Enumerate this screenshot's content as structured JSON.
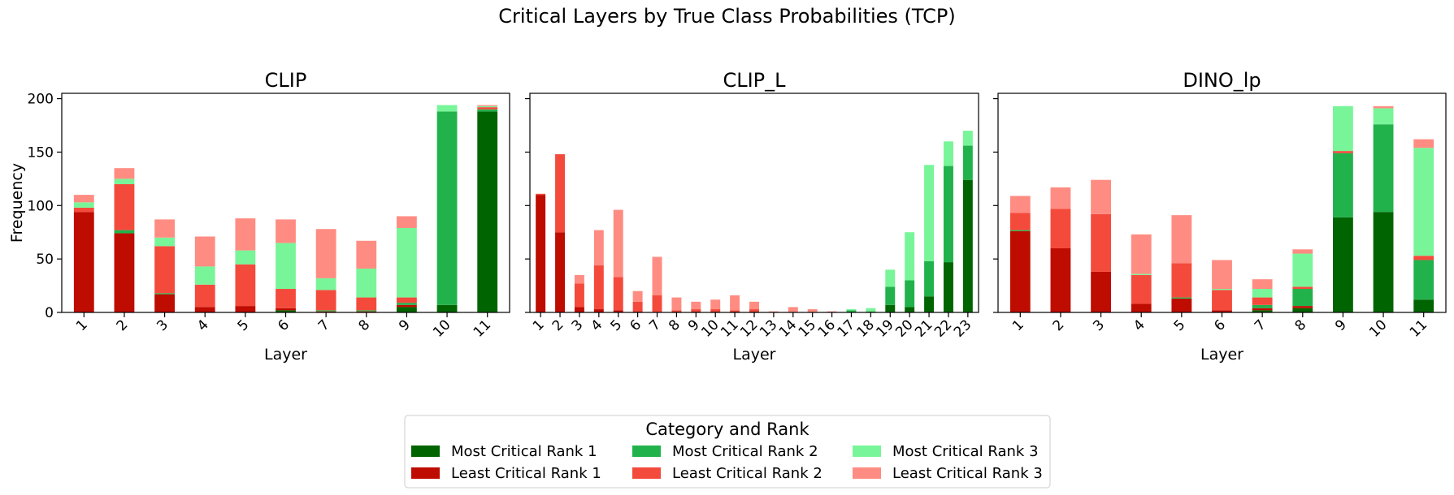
{
  "figure": {
    "title": "Critical Layers by True Class Probabilities (TCP)"
  },
  "legend": {
    "title": "Category and Rank",
    "placement": "bottom-center",
    "entries": [
      {
        "label": "Most Critical Rank 1",
        "color": "#006400"
      },
      {
        "label": "Least Critical Rank 1",
        "color": "#be0c00"
      },
      {
        "label": "Most Critical Rank 2",
        "color": "#22b24c"
      },
      {
        "label": "Least Critical Rank 2",
        "color": "#f44a3c"
      },
      {
        "label": "Most Critical Rank 3",
        "color": "#78f598"
      },
      {
        "label": "Least Critical Rank 3",
        "color": "#ff8c82"
      }
    ]
  },
  "chart_data": [
    {
      "type": "bar",
      "stacked": true,
      "title": "CLIP",
      "xlabel": "Layer",
      "ylabel": "Frequency",
      "ylim": [
        0,
        205
      ],
      "yticks": [
        0,
        50,
        100,
        150,
        200
      ],
      "grid": false,
      "categories": [
        "1",
        "2",
        "3",
        "4",
        "5",
        "6",
        "7",
        "8",
        "9",
        "10",
        "11"
      ],
      "series": [
        {
          "name": "Most Critical Rank 1",
          "color": "#006400",
          "values": [
            0,
            0,
            0,
            0,
            0,
            2,
            0,
            0,
            5,
            7,
            188
          ]
        },
        {
          "name": "Least Critical Rank 1",
          "color": "#be0c00",
          "values": [
            94,
            74,
            17,
            5,
            6,
            2,
            1,
            1,
            2,
            0,
            0
          ]
        },
        {
          "name": "Most Critical Rank 2",
          "color": "#22b24c",
          "values": [
            0,
            3,
            1,
            0,
            0,
            0,
            1,
            1,
            2,
            181,
            2
          ]
        },
        {
          "name": "Least Critical Rank 2",
          "color": "#f44a3c",
          "values": [
            4,
            43,
            44,
            21,
            39,
            18,
            19,
            12,
            5,
            0,
            2
          ]
        },
        {
          "name": "Most Critical Rank 3",
          "color": "#78f598",
          "values": [
            5,
            5,
            8,
            17,
            13,
            43,
            11,
            27,
            65,
            6,
            1
          ]
        },
        {
          "name": "Least Critical Rank 3",
          "color": "#ff8c82",
          "values": [
            7,
            10,
            17,
            28,
            30,
            22,
            46,
            26,
            11,
            0,
            1
          ]
        }
      ]
    },
    {
      "type": "bar",
      "stacked": true,
      "title": "CLIP_L",
      "xlabel": "Layer",
      "ylabel": "",
      "ylim": [
        0,
        205
      ],
      "yticks": [
        0,
        50,
        100,
        150,
        200
      ],
      "grid": false,
      "categories": [
        "1",
        "2",
        "3",
        "4",
        "5",
        "6",
        "7",
        "8",
        "9",
        "10",
        "11",
        "12",
        "13",
        "14",
        "15",
        "16",
        "17",
        "18",
        "19",
        "20",
        "21",
        "22",
        "23"
      ],
      "series": [
        {
          "name": "Most Critical Rank 1",
          "color": "#006400",
          "values": [
            0,
            0,
            0,
            0,
            0,
            0,
            0,
            0,
            0,
            0,
            0,
            0,
            0,
            0,
            0,
            0,
            0,
            0,
            7,
            5,
            15,
            47,
            124
          ]
        },
        {
          "name": "Least Critical Rank 1",
          "color": "#be0c00",
          "values": [
            110,
            75,
            5,
            3,
            2,
            1,
            0,
            1,
            1,
            1,
            1,
            1,
            0,
            0,
            0,
            0,
            0,
            0,
            0,
            0,
            0,
            0,
            0
          ]
        },
        {
          "name": "Most Critical Rank 2",
          "color": "#22b24c",
          "values": [
            0,
            0,
            0,
            0,
            0,
            0,
            0,
            0,
            0,
            0,
            0,
            0,
            0,
            0,
            0,
            0,
            2,
            1,
            17,
            25,
            33,
            90,
            32
          ]
        },
        {
          "name": "Least Critical Rank 2",
          "color": "#f44a3c",
          "values": [
            1,
            73,
            22,
            41,
            31,
            9,
            16,
            1,
            2,
            2,
            1,
            2,
            0,
            0,
            0,
            0,
            0,
            0,
            0,
            0,
            0,
            0,
            0
          ]
        },
        {
          "name": "Most Critical Rank 3",
          "color": "#78f598",
          "values": [
            0,
            0,
            0,
            0,
            0,
            0,
            0,
            0,
            0,
            0,
            0,
            0,
            0,
            0,
            0,
            0,
            1,
            3,
            16,
            45,
            90,
            23,
            14
          ]
        },
        {
          "name": "Least Critical Rank 3",
          "color": "#ff8c82",
          "values": [
            0,
            0,
            8,
            33,
            63,
            10,
            36,
            12,
            7,
            9,
            14,
            7,
            1,
            5,
            3,
            1,
            0,
            0,
            0,
            0,
            0,
            0,
            0
          ]
        }
      ]
    },
    {
      "type": "bar",
      "stacked": true,
      "title": "DINO_lp",
      "xlabel": "Layer",
      "ylabel": "",
      "ylim": [
        0,
        205
      ],
      "yticks": [
        0,
        50,
        100,
        150,
        200
      ],
      "grid": false,
      "categories": [
        "1",
        "2",
        "3",
        "4",
        "5",
        "6",
        "7",
        "8",
        "9",
        "10",
        "11"
      ],
      "series": [
        {
          "name": "Most Critical Rank 1",
          "color": "#006400",
          "values": [
            0,
            0,
            0,
            0,
            0,
            0,
            2,
            4,
            89,
            94,
            12
          ]
        },
        {
          "name": "Least Critical Rank 1",
          "color": "#be0c00",
          "values": [
            76,
            60,
            38,
            8,
            13,
            2,
            2,
            2,
            0,
            0,
            0
          ]
        },
        {
          "name": "Most Critical Rank 2",
          "color": "#22b24c",
          "values": [
            1,
            0,
            0,
            0,
            1,
            0,
            3,
            16,
            60,
            82,
            37
          ]
        },
        {
          "name": "Least Critical Rank 2",
          "color": "#f44a3c",
          "values": [
            16,
            37,
            54,
            27,
            32,
            19,
            7,
            2,
            2,
            0,
            4
          ]
        },
        {
          "name": "Most Critical Rank 3",
          "color": "#78f598",
          "values": [
            0,
            0,
            0,
            1,
            0,
            1,
            8,
            31,
            42,
            15,
            101
          ]
        },
        {
          "name": "Least Critical Rank 3",
          "color": "#ff8c82",
          "values": [
            16,
            20,
            32,
            37,
            45,
            27,
            9,
            4,
            0,
            2,
            8
          ]
        }
      ]
    }
  ]
}
